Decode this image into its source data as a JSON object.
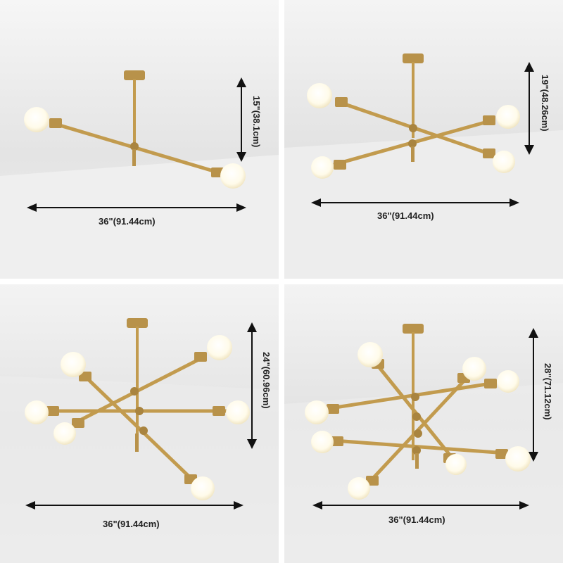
{
  "panels": [
    {
      "width_label": "36\"(91.44cm)",
      "height_label": "15\"(38.1cm)"
    },
    {
      "width_label": "36\"(91.44cm)",
      "height_label": "19\"(48.26cm)"
    },
    {
      "width_label": "36\"(91.44cm)",
      "height_label": "24\"(60.96cm)"
    },
    {
      "width_label": "36\"(91.44cm)",
      "height_label": "28\"(71.12cm)"
    }
  ],
  "colors": {
    "brass": "#c29b4e",
    "bulb": "#fffdf4",
    "wall": "#e9e9e9",
    "ceiling": "#f6f6f6"
  }
}
